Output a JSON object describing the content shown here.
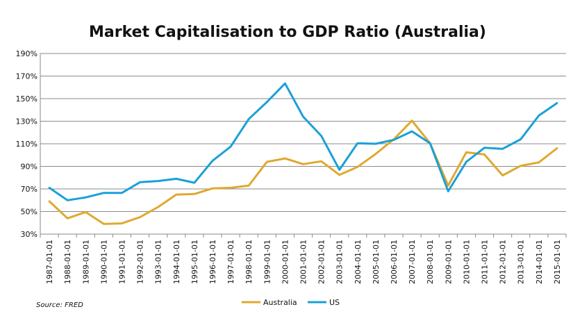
{
  "chart_data": {
    "type": "line",
    "title": "Market Capitalisation to GDP Ratio (Australia)",
    "source_text": "Source: FRED",
    "xlabel": "",
    "ylabel": "",
    "ylim": [
      30,
      190
    ],
    "y_ticks": [
      30,
      50,
      70,
      90,
      110,
      130,
      150,
      170,
      190
    ],
    "y_tick_labels": [
      "30%",
      "50%",
      "70%",
      "90%",
      "110%",
      "130%",
      "150%",
      "170%",
      "190%"
    ],
    "grid": true,
    "legend_position": "bottom",
    "categories": [
      "1987-01-01",
      "1988-01-01",
      "1989-01-01",
      "1990-01-01",
      "1991-01-01",
      "1992-01-01",
      "1993-01-01",
      "1994-01-01",
      "1995-01-01",
      "1996-01-01",
      "1997-01-01",
      "1998-01-01",
      "1999-01-01",
      "2000-01-01",
      "2001-01-01",
      "2002-01-01",
      "2003-01-01",
      "2004-01-01",
      "2005-01-01",
      "2006-01-01",
      "2007-01-01",
      "2008-01-01",
      "2009-01-01",
      "2010-01-01",
      "2011-01-01",
      "2012-01-01",
      "2013-01-01",
      "2014-01-01",
      "2015-01-01"
    ],
    "series": [
      {
        "name": "Australia",
        "color": "#E0A82E",
        "values": [
          59,
          44,
          49.5,
          39,
          39.5,
          45,
          54,
          65,
          65.5,
          70.5,
          71,
          73,
          94,
          97,
          92,
          94.5,
          82.5,
          89.5,
          101,
          114,
          130.5,
          110.5,
          73,
          102.5,
          100.5,
          82,
          90.5,
          93.5,
          106
        ]
      },
      {
        "name": "US",
        "color": "#1AA0D8",
        "values": [
          71,
          60,
          62.5,
          66.5,
          66.5,
          76,
          77,
          79,
          75.5,
          95,
          107.5,
          132,
          147,
          163.5,
          134,
          117,
          87,
          110.5,
          110,
          113.5,
          121,
          110.5,
          68,
          94,
          106.5,
          105.5,
          114,
          135,
          146
        ]
      }
    ]
  }
}
